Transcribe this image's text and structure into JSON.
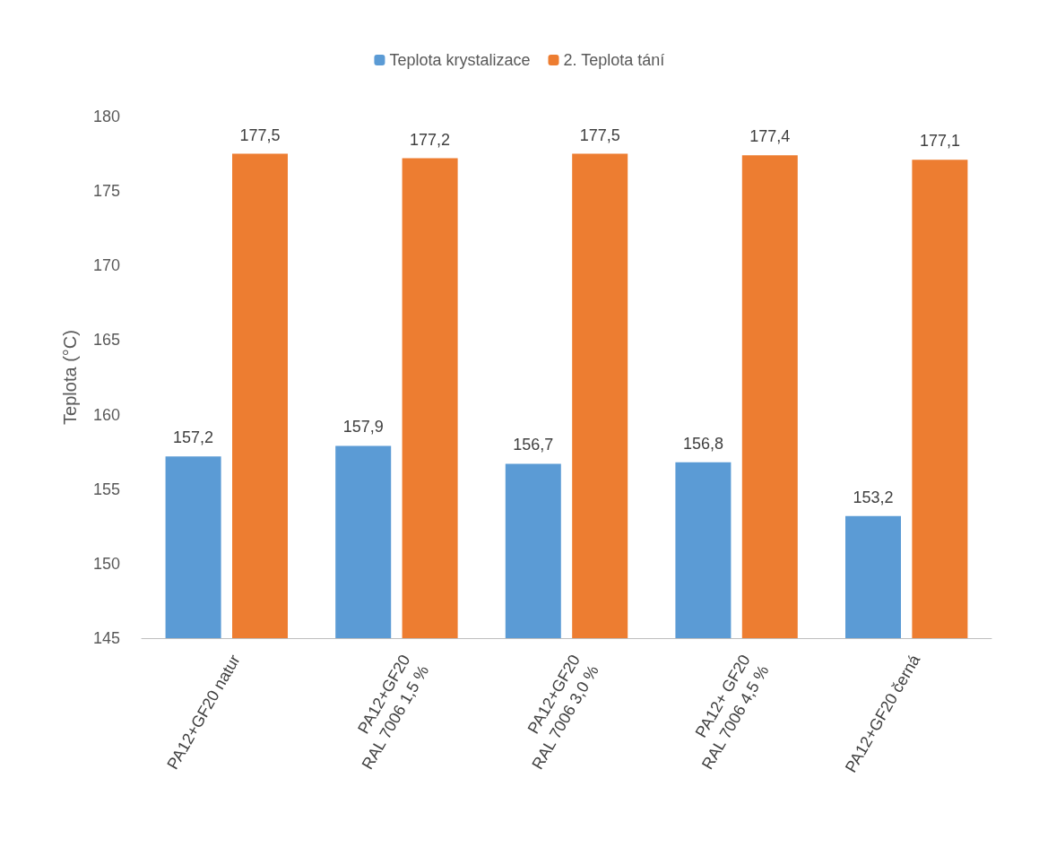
{
  "chart_data": {
    "type": "bar",
    "ylabel": "Teplota (°C)",
    "categories": [
      "PA12+GF20 natur",
      "PA12+GF20\nRAL 7006 1,5 %",
      "PA12+GF20\nRAL 7006 3,0 %",
      "PA12+ GF20\nRAL 7006 4,5 %",
      "PA12+GF20 černá"
    ],
    "series": [
      {
        "name": "Teplota krystalizace",
        "color": "#5b9bd5",
        "values": [
          157.2,
          157.9,
          156.7,
          156.8,
          153.2
        ],
        "value_labels": [
          "157,2",
          "157,9",
          "156,7",
          "156,8",
          "153,2"
        ]
      },
      {
        "name": "2. Teplota tání",
        "color": "#ed7d31",
        "values": [
          177.5,
          177.2,
          177.5,
          177.4,
          177.1
        ],
        "value_labels": [
          "177,5",
          "177,2",
          "177,5",
          "177,4",
          "177,1"
        ]
      }
    ],
    "ylim": [
      145,
      180
    ],
    "yticks": [
      145,
      150,
      155,
      160,
      165,
      170,
      175,
      180
    ],
    "grid": false,
    "legend": "top"
  }
}
